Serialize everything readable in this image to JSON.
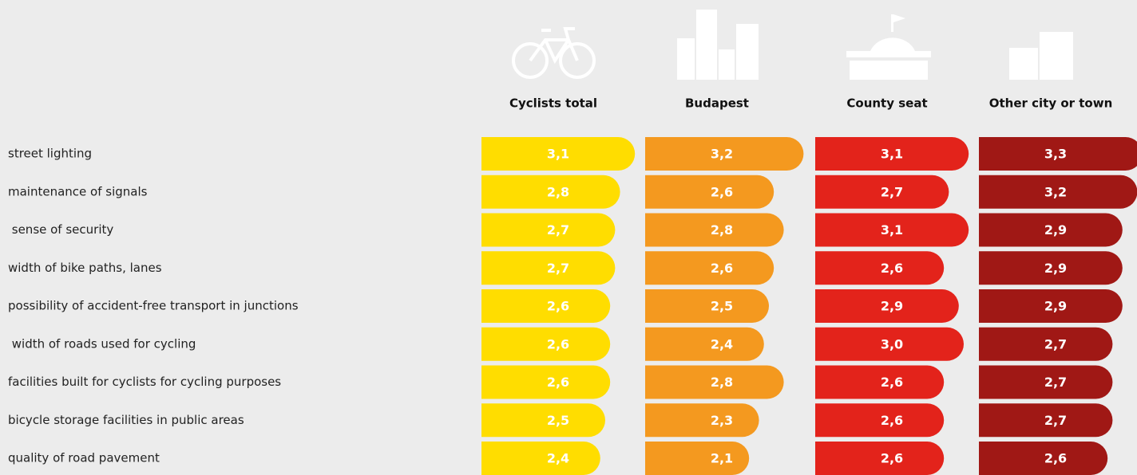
{
  "chart_data": {
    "type": "bar",
    "categories": [
      "street lighting",
      "maintenance of signals",
      " sense of security",
      "width of bike paths, lanes",
      "possibility of accident-free transport in junctions",
      " width of roads used for cycling",
      "facilities built for cyclists for cycling purposes",
      "bicycle storage facilities in public areas",
      "quality of road pavement"
    ],
    "series": [
      {
        "name": "Cyclists total",
        "color": "#ffdd00",
        "values": [
          3.1,
          2.8,
          2.7,
          2.7,
          2.6,
          2.6,
          2.6,
          2.5,
          2.4
        ],
        "value_labels": [
          "3,1",
          "2,8",
          "2,7",
          "2,7",
          "2,6",
          "2,6",
          "2,6",
          "2,5",
          "2,4"
        ]
      },
      {
        "name": "Budapest",
        "color": "#f4991f",
        "values": [
          3.2,
          2.6,
          2.8,
          2.6,
          2.5,
          2.4,
          2.8,
          2.3,
          2.1
        ],
        "value_labels": [
          "3,2",
          "2,6",
          "2,8",
          "2,6",
          "2,5",
          "2,4",
          "2,8",
          "2,3",
          "2,1"
        ]
      },
      {
        "name": "County seat",
        "color": "#e3231b",
        "values": [
          3.1,
          2.7,
          3.1,
          2.6,
          2.9,
          3.0,
          2.6,
          2.6,
          2.6
        ],
        "value_labels": [
          "3,1",
          "2,7",
          "3,1",
          "2,6",
          "2,9",
          "3,0",
          "2,6",
          "2,6",
          "2,6"
        ]
      },
      {
        "name": "Other city or town",
        "color": "#a01815",
        "values": [
          3.3,
          3.2,
          2.9,
          2.9,
          2.9,
          2.7,
          2.7,
          2.7,
          2.6
        ],
        "value_labels": [
          "3,3",
          "3,2",
          "2,9",
          "2,9",
          "2,9",
          "2,7",
          "2,7",
          "2,7",
          "2,6"
        ]
      }
    ]
  }
}
